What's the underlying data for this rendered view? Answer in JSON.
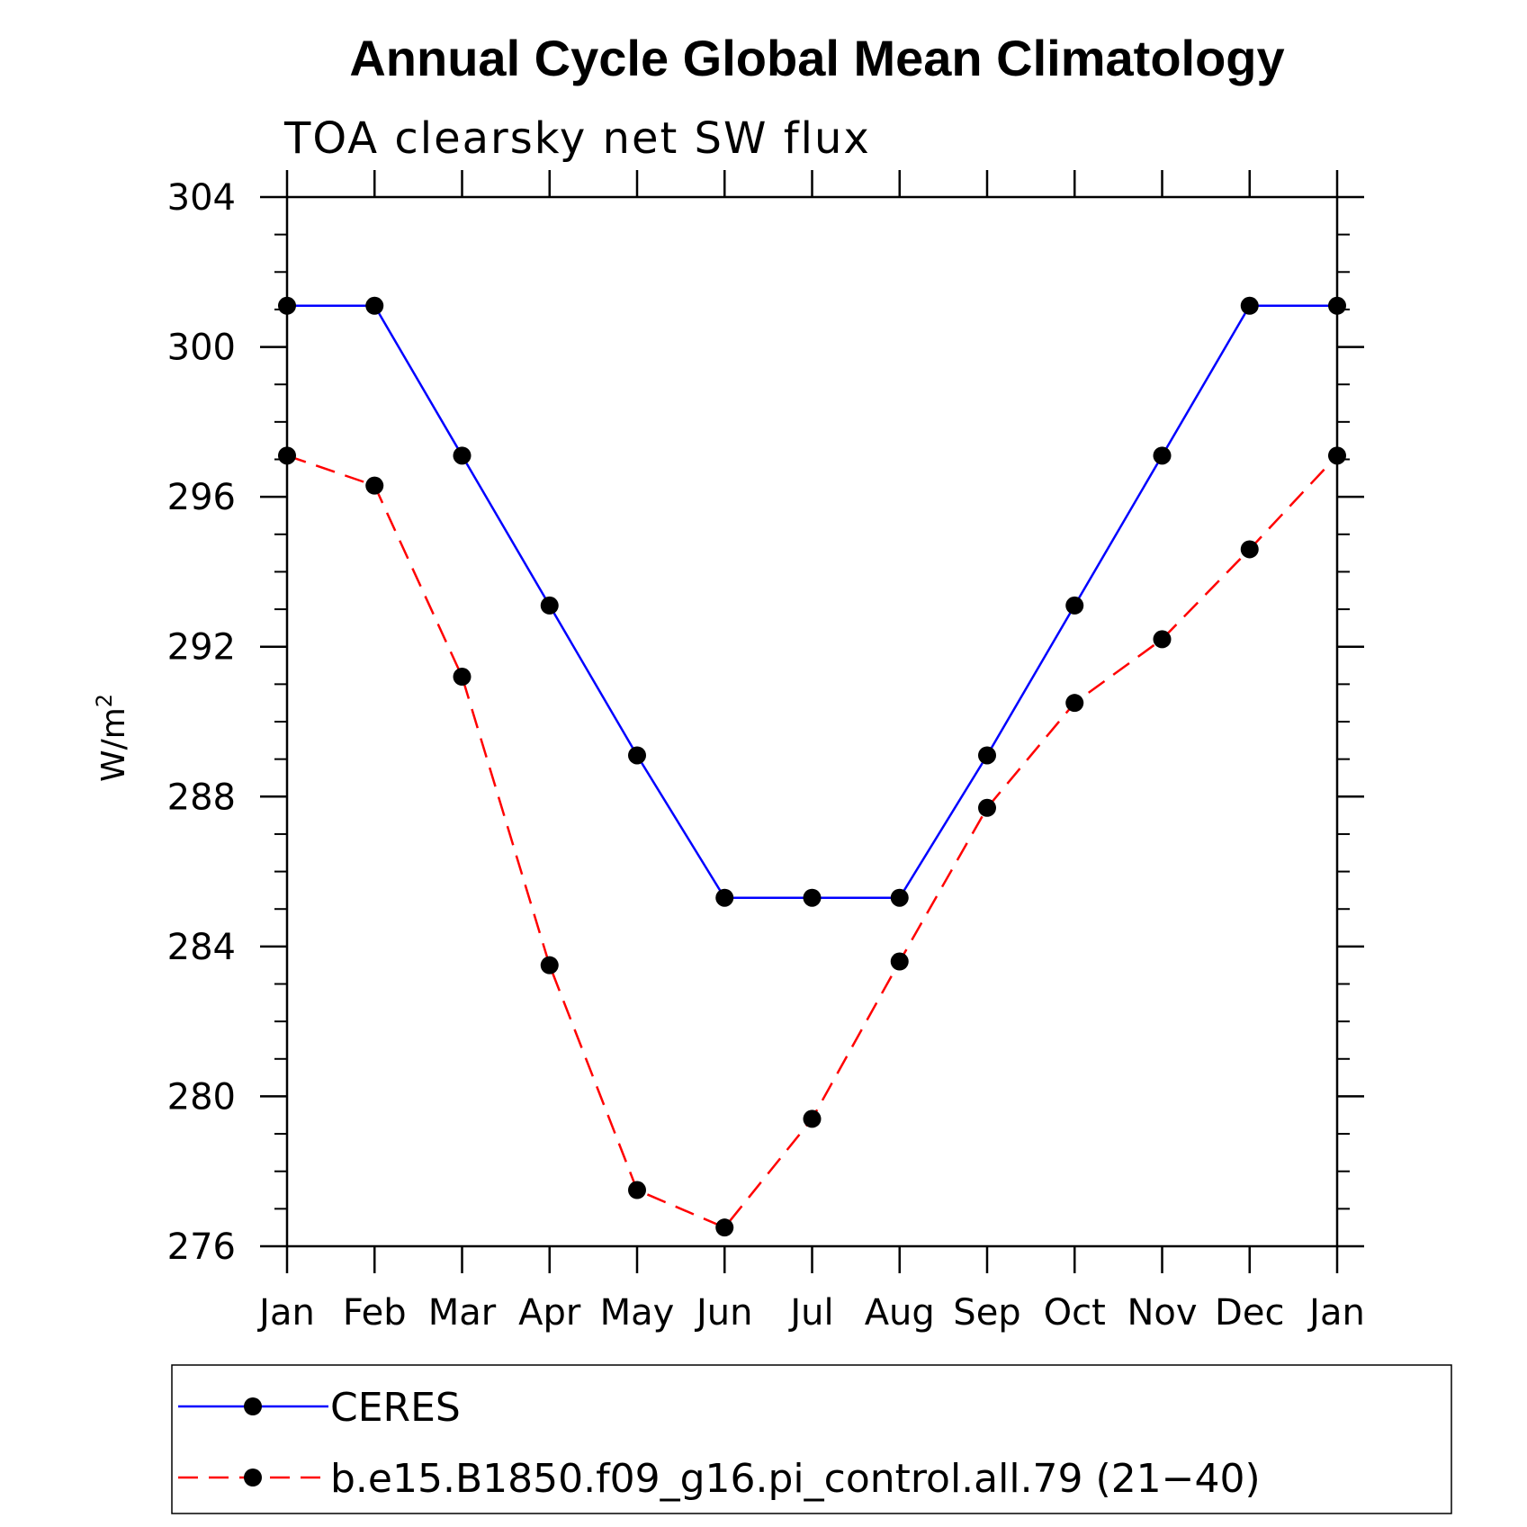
{
  "chart_data": {
    "type": "line",
    "title": "Annual Cycle Global Mean Climatology",
    "subtitle": "TOA clearsky net SW flux",
    "xlabel": "",
    "ylabel": "W/m",
    "ylabel_superscript": "2",
    "categories": [
      "Jan",
      "Feb",
      "Mar",
      "Apr",
      "May",
      "Jun",
      "Jul",
      "Aug",
      "Sep",
      "Oct",
      "Nov",
      "Dec",
      "Jan"
    ],
    "ylim": [
      276,
      304
    ],
    "yticks": [
      276,
      280,
      284,
      288,
      292,
      296,
      300,
      304
    ],
    "yminor_step": 1,
    "series": [
      {
        "name": "CERES",
        "color": "#0000ff",
        "dash": "solid",
        "marker": "filled-circle",
        "values": [
          301.1,
          301.1,
          297.1,
          293.1,
          289.1,
          285.3,
          285.3,
          285.3,
          289.1,
          293.1,
          297.1,
          301.1,
          301.1
        ]
      },
      {
        "name": "b.e15.B1850.f09_g16.pi_control.all.79 (21−40)",
        "color": "#ff0000",
        "dash": "dashed",
        "marker": "filled-circle",
        "values": [
          297.1,
          296.3,
          291.2,
          283.5,
          277.5,
          276.5,
          279.4,
          283.6,
          287.7,
          290.5,
          292.2,
          294.6,
          297.1
        ]
      }
    ],
    "legend_position": "bottom"
  }
}
